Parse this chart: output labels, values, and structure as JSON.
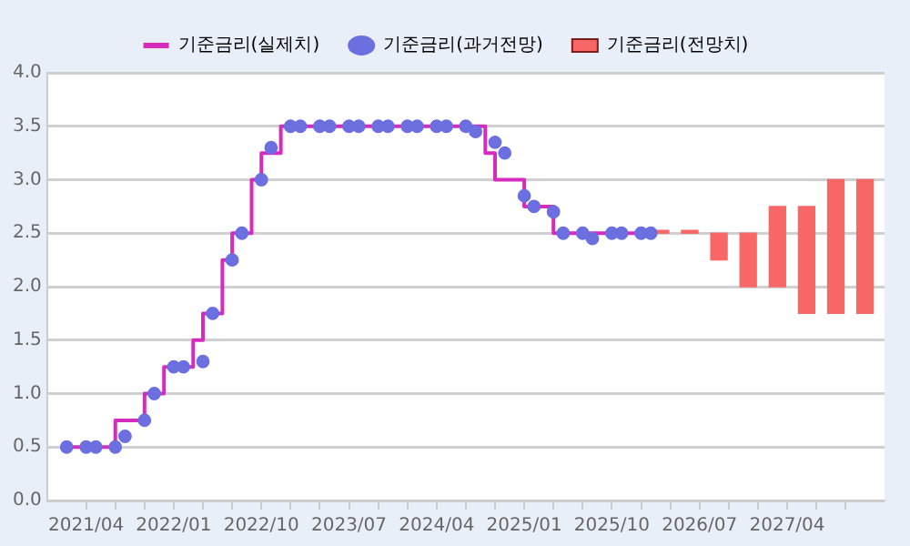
{
  "chart_data": {
    "type": "step",
    "xlim": [
      "2020-12",
      "2028-02"
    ],
    "xticks": [
      {
        "value": "2021-04",
        "label": "2021/04"
      },
      {
        "value": "2021-07",
        "label": null
      },
      {
        "value": "2021-10",
        "label": null
      },
      {
        "value": "2022-01",
        "label": "2022/01"
      },
      {
        "value": "2022-04",
        "label": null
      },
      {
        "value": "2022-07",
        "label": null
      },
      {
        "value": "2022-10",
        "label": "2022/10"
      },
      {
        "value": "2023-01",
        "label": null
      },
      {
        "value": "2023-04",
        "label": null
      },
      {
        "value": "2023-07",
        "label": "2023/07"
      },
      {
        "value": "2023-10",
        "label": null
      },
      {
        "value": "2024-01",
        "label": null
      },
      {
        "value": "2024-04",
        "label": "2024/04"
      },
      {
        "value": "2024-07",
        "label": null
      },
      {
        "value": "2024-10",
        "label": null
      },
      {
        "value": "2025-01",
        "label": "2025/01"
      },
      {
        "value": "2025-04",
        "label": null
      },
      {
        "value": "2025-07",
        "label": null
      },
      {
        "value": "2025-10",
        "label": "2025/10"
      },
      {
        "value": "2026-01",
        "label": null
      },
      {
        "value": "2026-04",
        "label": null
      },
      {
        "value": "2026-07",
        "label": "2026/07"
      },
      {
        "value": "2026-10",
        "label": null
      },
      {
        "value": "2027-01",
        "label": null
      },
      {
        "value": "2027-04",
        "label": "2027/04"
      },
      {
        "value": "2027-07",
        "label": null
      },
      {
        "value": "2027-10",
        "label": null
      }
    ],
    "ylim": [
      0,
      4
    ],
    "yticks": [
      {
        "value": 0,
        "label": "0.0"
      },
      0.5,
      {
        "value": 1,
        "label": "1.0"
      },
      1.5,
      {
        "value": 2,
        "label": "2.0"
      },
      2.5,
      {
        "value": 3,
        "label": "3.0"
      },
      3.5,
      {
        "value": 4,
        "label": "4.0"
      }
    ],
    "grid": "y",
    "legend": "top",
    "series": [
      {
        "name": "기준금리(실제치)",
        "color": "#d62bbf",
        "marker": "none",
        "x": [
          "2021-02",
          "2021-07",
          "2021-10",
          "2021-12",
          "2022-03",
          "2022-04",
          "2022-06",
          "2022-07",
          "2022-09",
          "2022-10",
          "2022-12",
          "2024-09",
          "2024-10",
          "2025-01",
          "2025-04",
          "2026-02"
        ],
        "values": [
          0.5,
          0.75,
          1.0,
          1.25,
          1.5,
          1.75,
          2.25,
          2.5,
          3.0,
          3.25,
          3.5,
          3.25,
          3.0,
          2.75,
          2.5,
          2.5
        ]
      },
      {
        "name": "기준금리(과거전망)",
        "type": "scatter",
        "color": "#6b6fe0",
        "marker": "circle",
        "x": [
          "2021-02",
          "2021-04",
          "2021-05",
          "2021-07",
          "2021-08",
          "2021-10",
          "2021-11",
          "2022-01",
          "2022-02",
          "2022-04",
          "2022-05",
          "2022-07",
          "2022-08",
          "2022-10",
          "2022-11",
          "2023-01",
          "2023-02",
          "2023-04",
          "2023-05",
          "2023-07",
          "2023-08",
          "2023-10",
          "2023-11",
          "2024-01",
          "2024-02",
          "2024-04",
          "2024-05",
          "2024-07",
          "2024-08",
          "2024-10",
          "2024-11",
          "2025-01",
          "2025-02",
          "2025-04",
          "2025-05",
          "2025-07",
          "2025-08",
          "2025-10",
          "2025-11",
          "2026-01",
          "2026-02"
        ],
        "values": [
          0.5,
          0.5,
          0.5,
          0.5,
          0.6,
          0.75,
          1.0,
          1.25,
          1.25,
          1.3,
          1.75,
          2.25,
          2.5,
          3.0,
          3.3,
          3.5,
          3.5,
          3.5,
          3.5,
          3.5,
          3.5,
          3.5,
          3.5,
          3.5,
          3.5,
          3.5,
          3.5,
          3.5,
          3.45,
          3.35,
          3.25,
          2.85,
          2.75,
          2.7,
          2.5,
          2.5,
          2.45,
          2.5,
          2.5,
          2.5,
          2.5
        ]
      },
      {
        "name": "기준금리(전망치)",
        "type": "bar",
        "color": "#f86666",
        "x": [
          "2026-03",
          "2026-06",
          "2026-09",
          "2026-12",
          "2027-03",
          "2027-06",
          "2027-09",
          "2027-12"
        ],
        "base": [
          2.5,
          2.5,
          2.25,
          2.0,
          2.0,
          1.75,
          1.75,
          1.75
        ],
        "values": [
          0,
          0,
          0.25,
          0.5,
          0.75,
          1.0,
          1.25,
          1.25
        ]
      }
    ]
  }
}
